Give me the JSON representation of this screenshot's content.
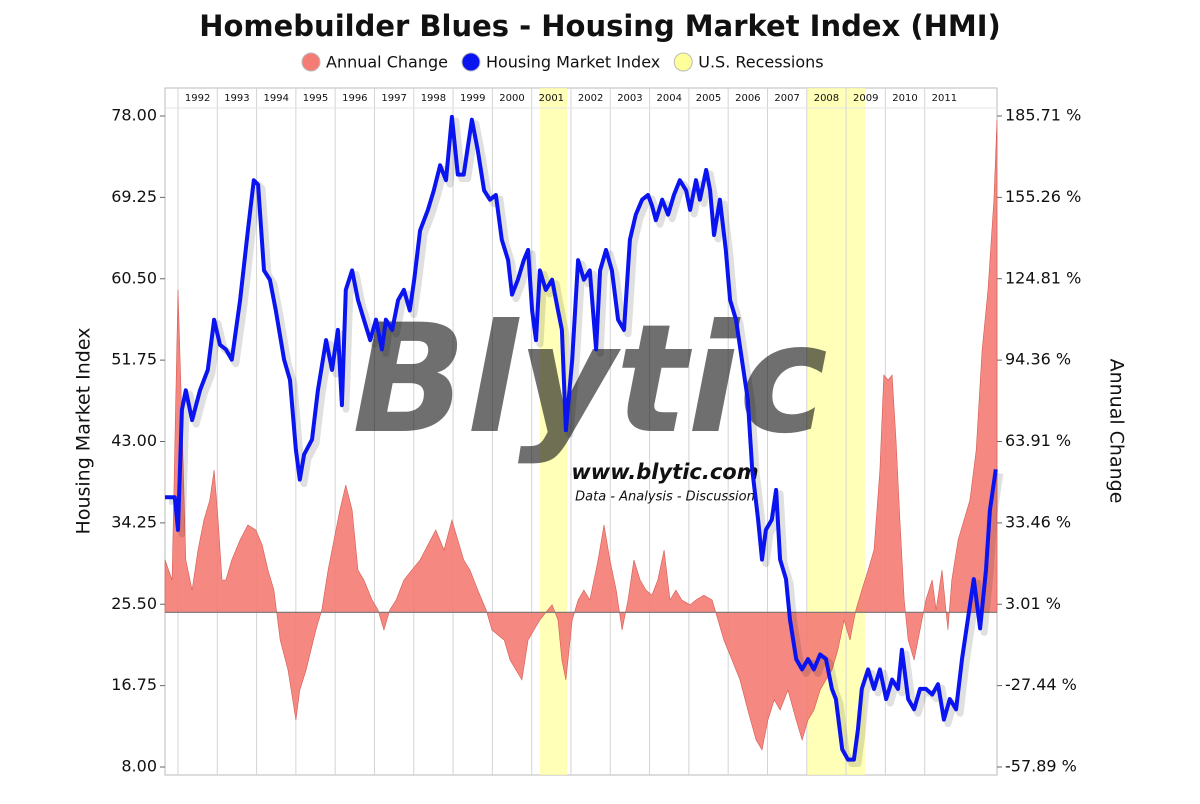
{
  "chart_data": {
    "type": "line",
    "title": "Homebuilder Blues - Housing Market Index (HMI)",
    "y_label": "Housing Market Index",
    "y2_label": "Annual Change",
    "watermark": [
      "Blytic",
      "www.blytic.com",
      "Data - Analysis - Discussion"
    ],
    "xlim": [
      1991.67,
      2012.84
    ],
    "xticks": [
      1992,
      1993,
      1994,
      1995,
      1996,
      1997,
      1998,
      1999,
      2000,
      2001,
      2002,
      2003,
      2004,
      2005,
      2006,
      2007,
      2008,
      2009,
      2010,
      2011
    ],
    "ylim": [
      8,
      78
    ],
    "yticks": [
      {
        "value": 8,
        "label": "8.00"
      },
      16.75,
      {
        "value": 25.5,
        "label": "25.50"
      },
      34.25,
      {
        "value": 43,
        "label": "43.00"
      },
      51.75,
      {
        "value": 60.5,
        "label": "60.50"
      },
      69.25,
      {
        "value": 78,
        "label": "78.00"
      }
    ],
    "y2lim": [
      -57.89,
      185.71
    ],
    "y2ticks": [
      {
        "value": -57.89,
        "label": "-57.89 %"
      },
      {
        "value": -27.44,
        "label": "-27.44 %"
      },
      {
        "value": 3.01,
        "label": "3.01 %"
      },
      {
        "value": 33.46,
        "label": "33.46 %"
      },
      {
        "value": 63.91,
        "label": "63.91 %"
      },
      {
        "value": 94.36,
        "label": "94.36 %"
      },
      {
        "value": 124.81,
        "label": "124.81 %"
      },
      {
        "value": 155.26,
        "label": "155.26 %"
      },
      {
        "value": 185.71,
        "label": "185.71 %"
      }
    ],
    "bands": {
      "name": "U.S. Recessions",
      "color": "#ffff99",
      "ranges": [
        [
          2001.21,
          2001.9
        ],
        [
          2008.0,
          2009.48
        ]
      ]
    },
    "series": [
      {
        "name": "Annual Change",
        "color": "#f47c74",
        "type": "area",
        "axis": "y2",
        "x": [
          1991.67,
          1991.85,
          1992.0,
          1992.1,
          1992.2,
          1992.36,
          1992.51,
          1992.66,
          1992.81,
          1992.92,
          1993.02,
          1993.12,
          1993.22,
          1993.37,
          1993.58,
          1993.78,
          1993.98,
          1994.14,
          1994.29,
          1994.44,
          1994.6,
          1994.8,
          1995.0,
          1995.1,
          1995.26,
          1995.51,
          1995.66,
          1995.82,
          1995.97,
          1996.12,
          1996.27,
          1996.43,
          1996.58,
          1996.73,
          1996.94,
          1997.09,
          1997.24,
          1997.39,
          1997.55,
          1997.75,
          1997.95,
          1998.16,
          1998.36,
          1998.56,
          1998.77,
          1998.97,
          1999.12,
          1999.27,
          1999.43,
          1999.63,
          1999.84,
          1999.99,
          2000.14,
          2000.3,
          2000.45,
          2000.6,
          2000.75,
          2000.91,
          2001.06,
          2001.21,
          2001.41,
          2001.52,
          2001.67,
          2001.77,
          2001.87,
          2002.03,
          2002.18,
          2002.33,
          2002.48,
          2002.69,
          2002.84,
          2002.99,
          2003.15,
          2003.3,
          2003.45,
          2003.6,
          2003.76,
          2003.91,
          2004.06,
          2004.21,
          2004.37,
          2004.52,
          2004.67,
          2004.82,
          2005.03,
          2005.18,
          2005.38,
          2005.59,
          2005.74,
          2005.89,
          2006.1,
          2006.3,
          2006.5,
          2006.71,
          2006.86,
          2007.01,
          2007.17,
          2007.32,
          2007.52,
          2007.73,
          2007.88,
          2008.03,
          2008.18,
          2008.34,
          2008.49,
          2008.64,
          2008.79,
          2008.95,
          2009.1,
          2009.25,
          2009.4,
          2009.56,
          2009.71,
          2009.86,
          2009.96,
          2010.07,
          2010.17,
          2010.27,
          2010.37,
          2010.48,
          2010.58,
          2010.73,
          2010.88,
          2011.03,
          2011.19,
          2011.29,
          2011.44,
          2011.59,
          2011.69,
          2011.85,
          2012.0,
          2012.15,
          2012.31,
          2012.46,
          2012.61,
          2012.76,
          2012.84
        ],
        "values": [
          19.6,
          12.1,
          120.6,
          71.9,
          19.6,
          8.3,
          23.3,
          34.5,
          42,
          53.2,
          34.5,
          12.1,
          12.1,
          19.6,
          27.1,
          32.7,
          30.8,
          25.2,
          15.8,
          8.3,
          -10.4,
          -21.6,
          -40.3,
          -29.1,
          -21.6,
          -6.6,
          0.9,
          15.8,
          27.1,
          38.3,
          47.6,
          38.3,
          15.8,
          12.1,
          4.6,
          0.9,
          -6.6,
          0.9,
          4.6,
          12.1,
          15.8,
          19.6,
          25.2,
          30.8,
          23.3,
          34.5,
          27.1,
          19.6,
          15.8,
          8.3,
          0.9,
          -6.6,
          -8.5,
          -10.4,
          -17.9,
          -21.6,
          -25.3,
          -10.4,
          -6.6,
          -2.9,
          0.9,
          2.8,
          -2.9,
          -17.9,
          -25.3,
          -2.9,
          4.6,
          8.3,
          4.6,
          19.6,
          32.7,
          19.6,
          8.3,
          -6.6,
          4.6,
          19.6,
          12.1,
          8.3,
          6.4,
          12.1,
          23.3,
          4.6,
          8.3,
          4.6,
          2.8,
          4.6,
          6.4,
          4.6,
          -2.9,
          -10.4,
          -17.9,
          -25.3,
          -36.6,
          -47.8,
          -51.5,
          -40.3,
          -32.8,
          -36.6,
          -29.1,
          -40.3,
          -47.8,
          -40.3,
          -36.6,
          -29.1,
          -25.3,
          -21.6,
          -14.1,
          -2.9,
          -10.4,
          0.9,
          8.3,
          15.8,
          23.3,
          53.2,
          88.8,
          86.9,
          88.8,
          64.5,
          34.5,
          4.6,
          -10.4,
          -17.9,
          -6.6,
          4.6,
          12.1,
          0.9,
          15.8,
          -6.6,
          12.1,
          27.1,
          34.5,
          42,
          60.7,
          98.1,
          120.6,
          154.3,
          184.2
        ]
      },
      {
        "name": "Housing Market Index",
        "color": "#0a14f0",
        "type": "line",
        "x": [
          1991.67,
          1991.92,
          1992.0,
          1992.1,
          1992.2,
          1992.36,
          1992.56,
          1992.76,
          1992.92,
          1993.07,
          1993.22,
          1993.37,
          1993.58,
          1993.78,
          1993.93,
          1994.04,
          1994.19,
          1994.34,
          1994.49,
          1994.7,
          1994.85,
          1995.0,
          1995.1,
          1995.21,
          1995.41,
          1995.56,
          1995.77,
          1995.92,
          1996.07,
          1996.17,
          1996.27,
          1996.43,
          1996.58,
          1996.73,
          1996.89,
          1997.04,
          1997.19,
          1997.29,
          1997.45,
          1997.6,
          1997.75,
          1997.9,
          1998.01,
          1998.16,
          1998.36,
          1998.51,
          1998.67,
          1998.82,
          1998.97,
          1999.12,
          1999.27,
          1999.48,
          1999.63,
          1999.79,
          1999.94,
          2000.09,
          2000.24,
          2000.4,
          2000.5,
          2000.65,
          2000.8,
          2000.91,
          2001.01,
          2001.11,
          2001.21,
          2001.36,
          2001.52,
          2001.67,
          2001.77,
          2001.87,
          2002.03,
          2002.18,
          2002.33,
          2002.48,
          2002.64,
          2002.74,
          2002.89,
          2003.04,
          2003.2,
          2003.35,
          2003.5,
          2003.65,
          2003.81,
          2003.96,
          2004.06,
          2004.16,
          2004.32,
          2004.47,
          2004.62,
          2004.77,
          2004.93,
          2005.03,
          2005.18,
          2005.28,
          2005.44,
          2005.54,
          2005.64,
          2005.79,
          2005.94,
          2006.05,
          2006.2,
          2006.35,
          2006.5,
          2006.61,
          2006.76,
          2006.86,
          2006.96,
          2007.11,
          2007.22,
          2007.32,
          2007.47,
          2007.57,
          2007.73,
          2007.88,
          2008.03,
          2008.18,
          2008.34,
          2008.49,
          2008.64,
          2008.74,
          2008.9,
          2009.05,
          2009.2,
          2009.3,
          2009.4,
          2009.56,
          2009.71,
          2009.86,
          2010.02,
          2010.17,
          2010.32,
          2010.42,
          2010.58,
          2010.73,
          2010.88,
          2011.03,
          2011.19,
          2011.34,
          2011.49,
          2011.64,
          2011.8,
          2011.95,
          2012.1,
          2012.25,
          2012.41,
          2012.56,
          2012.66,
          2012.81
        ],
        "values": [
          37,
          37,
          33.5,
          46.4,
          48.5,
          45.3,
          48.5,
          50.7,
          56.1,
          53.4,
          52.9,
          51.8,
          58.2,
          65.7,
          71.1,
          70.6,
          61.4,
          60.4,
          57.1,
          51.8,
          49.6,
          42.1,
          38.9,
          41.6,
          43.2,
          48.5,
          53.9,
          50.7,
          55,
          46.9,
          59.3,
          61.4,
          58.2,
          56.1,
          53.9,
          56.1,
          52.9,
          56.1,
          55,
          58.2,
          59.3,
          57.1,
          60.4,
          65.7,
          67.9,
          70,
          72.7,
          71.1,
          77.9,
          71.7,
          71.7,
          77.6,
          74.3,
          70,
          69,
          69.5,
          64.7,
          62.5,
          58.8,
          60.4,
          62.5,
          63.6,
          57.1,
          53.9,
          61.4,
          59.3,
          60.4,
          57.1,
          55,
          44.2,
          51.8,
          62.5,
          60.4,
          61.4,
          52.9,
          61.4,
          63.6,
          61.4,
          56.1,
          55,
          64.7,
          67.4,
          69,
          69.5,
          68.4,
          66.8,
          69,
          67.4,
          69.5,
          71.1,
          70,
          67.9,
          71.1,
          69,
          72.2,
          70,
          65.2,
          69,
          63.6,
          58.2,
          56.1,
          51.8,
          47.5,
          40,
          34.6,
          30.3,
          33.5,
          34.6,
          37.8,
          30.3,
          28.2,
          23.9,
          19.6,
          18.5,
          19.6,
          18.5,
          20.1,
          19.6,
          16.4,
          15.3,
          9.9,
          8.8,
          8.8,
          12,
          16.4,
          18.5,
          16.4,
          18.5,
          15.3,
          17.4,
          16.4,
          20.6,
          15.3,
          14.2,
          16.4,
          16.4,
          15.8,
          16.9,
          13.1,
          15.3,
          14.2,
          19.6,
          23.9,
          28.2,
          22.9,
          29.2,
          35.6,
          40
        ]
      }
    ]
  }
}
